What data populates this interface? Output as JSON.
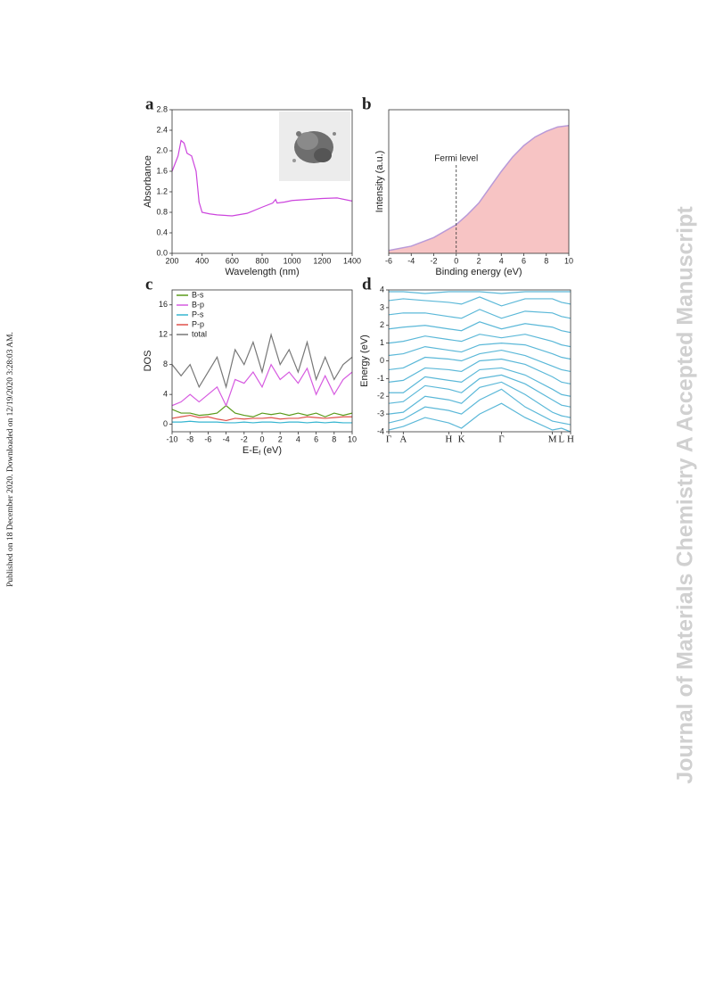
{
  "side_note": "Published on 18 December 2020. Downloaded on 12/19/2020 3:28:03 AM.",
  "watermark": "Journal of Materials Chemistry A Accepted Manuscript",
  "chart_data": [
    {
      "type": "line",
      "panel": "a",
      "xlabel": "Wavelength (nm)",
      "ylabel": "Absorbance",
      "x": [
        200,
        220,
        240,
        260,
        280,
        300,
        330,
        360,
        380,
        400,
        450,
        500,
        600,
        700,
        800,
        870,
        890,
        900,
        950,
        1000,
        1100,
        1200,
        1300,
        1400
      ],
      "series": [
        {
          "color": "#cc44dd",
          "values": [
            1.6,
            1.75,
            1.9,
            2.2,
            2.15,
            1.95,
            1.9,
            1.6,
            1.0,
            0.8,
            0.77,
            0.75,
            0.73,
            0.78,
            0.9,
            0.98,
            1.05,
            0.98,
            1.0,
            1.03,
            1.05,
            1.07,
            1.08,
            1.02
          ]
        }
      ],
      "xlim": [
        200,
        1400
      ],
      "xticks": [
        200,
        400,
        600,
        800,
        1000,
        1200,
        1400
      ],
      "ylim": [
        0,
        2.8
      ],
      "yticks": [
        {
          "value": 0,
          "label": "0.0"
        },
        0.4,
        {
          "value": 0.8,
          "label": "0.8"
        },
        1.2,
        1.6,
        {
          "value": 2.0,
          "label": "2.0"
        },
        2.4,
        2.8
      ]
    },
    {
      "type": "area",
      "panel": "b",
      "xlabel": "Binding energy (eV)",
      "ylabel": "Intensity (a.u.)",
      "annotation": "Fermi level",
      "vline": 0,
      "x": [
        -6,
        -4,
        -2,
        0,
        1,
        2,
        3,
        4,
        5,
        6,
        7,
        8,
        9,
        10
      ],
      "series": [
        {
          "color": "#f7c4c4",
          "values": [
            2,
            5,
            11,
            20,
            27,
            35,
            46,
            57,
            67,
            75,
            81,
            85,
            88,
            89
          ]
        }
      ],
      "xlim": [
        -6,
        10
      ],
      "xticks": [
        -6,
        -4,
        -2,
        0,
        2,
        4,
        6,
        8,
        10
      ],
      "ylim": [
        0,
        100
      ]
    },
    {
      "type": "line",
      "panel": "c",
      "xlabel": [
        "E-E",
        "f",
        " (eV)"
      ],
      "ylabel": "DOS",
      "legend": "upper left",
      "x": [
        -10,
        -9,
        -8,
        -7,
        -6,
        -5,
        -4,
        -3,
        -2,
        -1,
        0,
        1,
        2,
        3,
        4,
        5,
        6,
        7,
        8,
        9,
        10
      ],
      "series": [
        {
          "name": "B-s",
          "color": "#5a9a1a",
          "values": [
            2,
            1.5,
            1.5,
            1.2,
            1.3,
            1.5,
            2.5,
            1.5,
            1.2,
            1,
            1.5,
            1.3,
            1.5,
            1.2,
            1.5,
            1.2,
            1.5,
            1,
            1.5,
            1.2,
            1.5
          ]
        },
        {
          "name": "B-p",
          "color": "#d65ae0",
          "values": [
            2.5,
            3,
            4,
            3,
            4,
            5,
            2.5,
            6,
            5.5,
            7,
            5,
            8,
            6,
            7,
            5.5,
            7.5,
            4,
            6.5,
            4,
            6,
            7
          ]
        },
        {
          "name": "P-s",
          "color": "#35b5d0",
          "values": [
            0.3,
            0.3,
            0.4,
            0.3,
            0.3,
            0.3,
            0.2,
            0.2,
            0.3,
            0.2,
            0.3,
            0.3,
            0.2,
            0.3,
            0.3,
            0.2,
            0.3,
            0.2,
            0.3,
            0.2,
            0.2
          ]
        },
        {
          "name": "P-p",
          "color": "#e0504a",
          "values": [
            0.8,
            1,
            1.2,
            0.9,
            1,
            0.7,
            0.5,
            0.8,
            0.7,
            0.8,
            0.8,
            0.9,
            0.7,
            0.8,
            0.8,
            1,
            0.9,
            0.8,
            0.9,
            1,
            1
          ]
        },
        {
          "name": "total",
          "color": "#777777",
          "values": [
            8,
            6.5,
            8,
            5,
            7,
            9,
            5,
            10,
            8,
            11,
            7,
            12,
            8,
            10,
            7,
            11,
            6,
            9,
            6,
            8,
            9
          ]
        }
      ],
      "xlim": [
        -10,
        10
      ],
      "xticks": [
        -10,
        -8,
        -6,
        -4,
        -2,
        0,
        2,
        4,
        6,
        8,
        10
      ],
      "ylim": [
        -1,
        18
      ],
      "yticks": [
        0,
        4,
        8,
        12,
        16
      ]
    },
    {
      "type": "line",
      "panel": "d",
      "ylabel": "Energy (eV)",
      "x": [
        0,
        0.08,
        0.2,
        0.33,
        0.4,
        0.5,
        0.62,
        0.75,
        0.9,
        0.95,
        1
      ],
      "series": [
        {
          "color": "#5bb8d8",
          "values": [
            -3.9,
            -3.7,
            -3.2,
            -3.5,
            -3.8,
            -3.0,
            -2.4,
            -3.2,
            -3.9,
            -3.8,
            -4.0
          ]
        },
        {
          "color": "#5bb8d8",
          "values": [
            -3.5,
            -3.3,
            -2.6,
            -2.8,
            -3.0,
            -2.2,
            -1.6,
            -2.6,
            -3.4,
            -3.5,
            -3.6
          ]
        },
        {
          "color": "#5bb8d8",
          "values": [
            -3.0,
            -2.9,
            -2.0,
            -2.2,
            -2.4,
            -1.5,
            -1.2,
            -1.9,
            -2.9,
            -3.1,
            -3.2
          ]
        },
        {
          "color": "#5bb8d8",
          "values": [
            -2.4,
            -2.3,
            -1.4,
            -1.6,
            -1.8,
            -1.0,
            -0.8,
            -1.3,
            -2.2,
            -2.5,
            -2.6
          ]
        },
        {
          "color": "#5bb8d8",
          "values": [
            -1.8,
            -1.8,
            -0.9,
            -1.1,
            -1.2,
            -0.5,
            -0.4,
            -0.8,
            -1.6,
            -1.9,
            -2.0
          ]
        },
        {
          "color": "#5bb8d8",
          "values": [
            -1.2,
            -1.1,
            -0.4,
            -0.5,
            -0.6,
            0.0,
            0.1,
            -0.2,
            -0.9,
            -1.2,
            -1.3
          ]
        },
        {
          "color": "#5bb8d8",
          "values": [
            -0.5,
            -0.4,
            0.2,
            0.1,
            0.0,
            0.4,
            0.6,
            0.3,
            -0.3,
            -0.5,
            -0.6
          ]
        },
        {
          "color": "#5bb8d8",
          "values": [
            0.3,
            0.4,
            0.8,
            0.6,
            0.5,
            0.9,
            1.0,
            0.9,
            0.4,
            0.2,
            0.1
          ]
        },
        {
          "color": "#5bb8d8",
          "values": [
            1.0,
            1.1,
            1.4,
            1.2,
            1.1,
            1.5,
            1.3,
            1.5,
            1.1,
            0.9,
            0.8
          ]
        },
        {
          "color": "#5bb8d8",
          "values": [
            1.8,
            1.9,
            2.0,
            1.8,
            1.7,
            2.2,
            1.8,
            2.1,
            1.9,
            1.7,
            1.6
          ]
        },
        {
          "color": "#5bb8d8",
          "values": [
            2.6,
            2.7,
            2.7,
            2.5,
            2.4,
            2.9,
            2.4,
            2.8,
            2.7,
            2.5,
            2.4
          ]
        },
        {
          "color": "#5bb8d8",
          "values": [
            3.4,
            3.5,
            3.4,
            3.3,
            3.2,
            3.6,
            3.1,
            3.5,
            3.5,
            3.3,
            3.2
          ]
        },
        {
          "color": "#5bb8d8",
          "values": [
            3.9,
            3.9,
            3.8,
            3.9,
            3.9,
            3.9,
            3.8,
            3.9,
            3.9,
            3.9,
            3.9
          ]
        }
      ],
      "xlim": [
        0,
        1
      ],
      "xticks": [
        {
          "value": 0,
          "label": "Γ"
        },
        {
          "value": 0.08,
          "label": "A"
        },
        {
          "value": 0.33,
          "label": "H"
        },
        {
          "value": 0.4,
          "label": "K"
        },
        {
          "value": 0.62,
          "label": "Γ"
        },
        {
          "value": 0.9,
          "label": "M"
        },
        {
          "value": 0.95,
          "label": "L"
        },
        {
          "value": 1,
          "label": "H"
        }
      ],
      "ylim": [
        -4,
        4
      ],
      "yticks": [
        -4,
        -3,
        -2,
        -1,
        0,
        1,
        2,
        3,
        4
      ]
    }
  ]
}
